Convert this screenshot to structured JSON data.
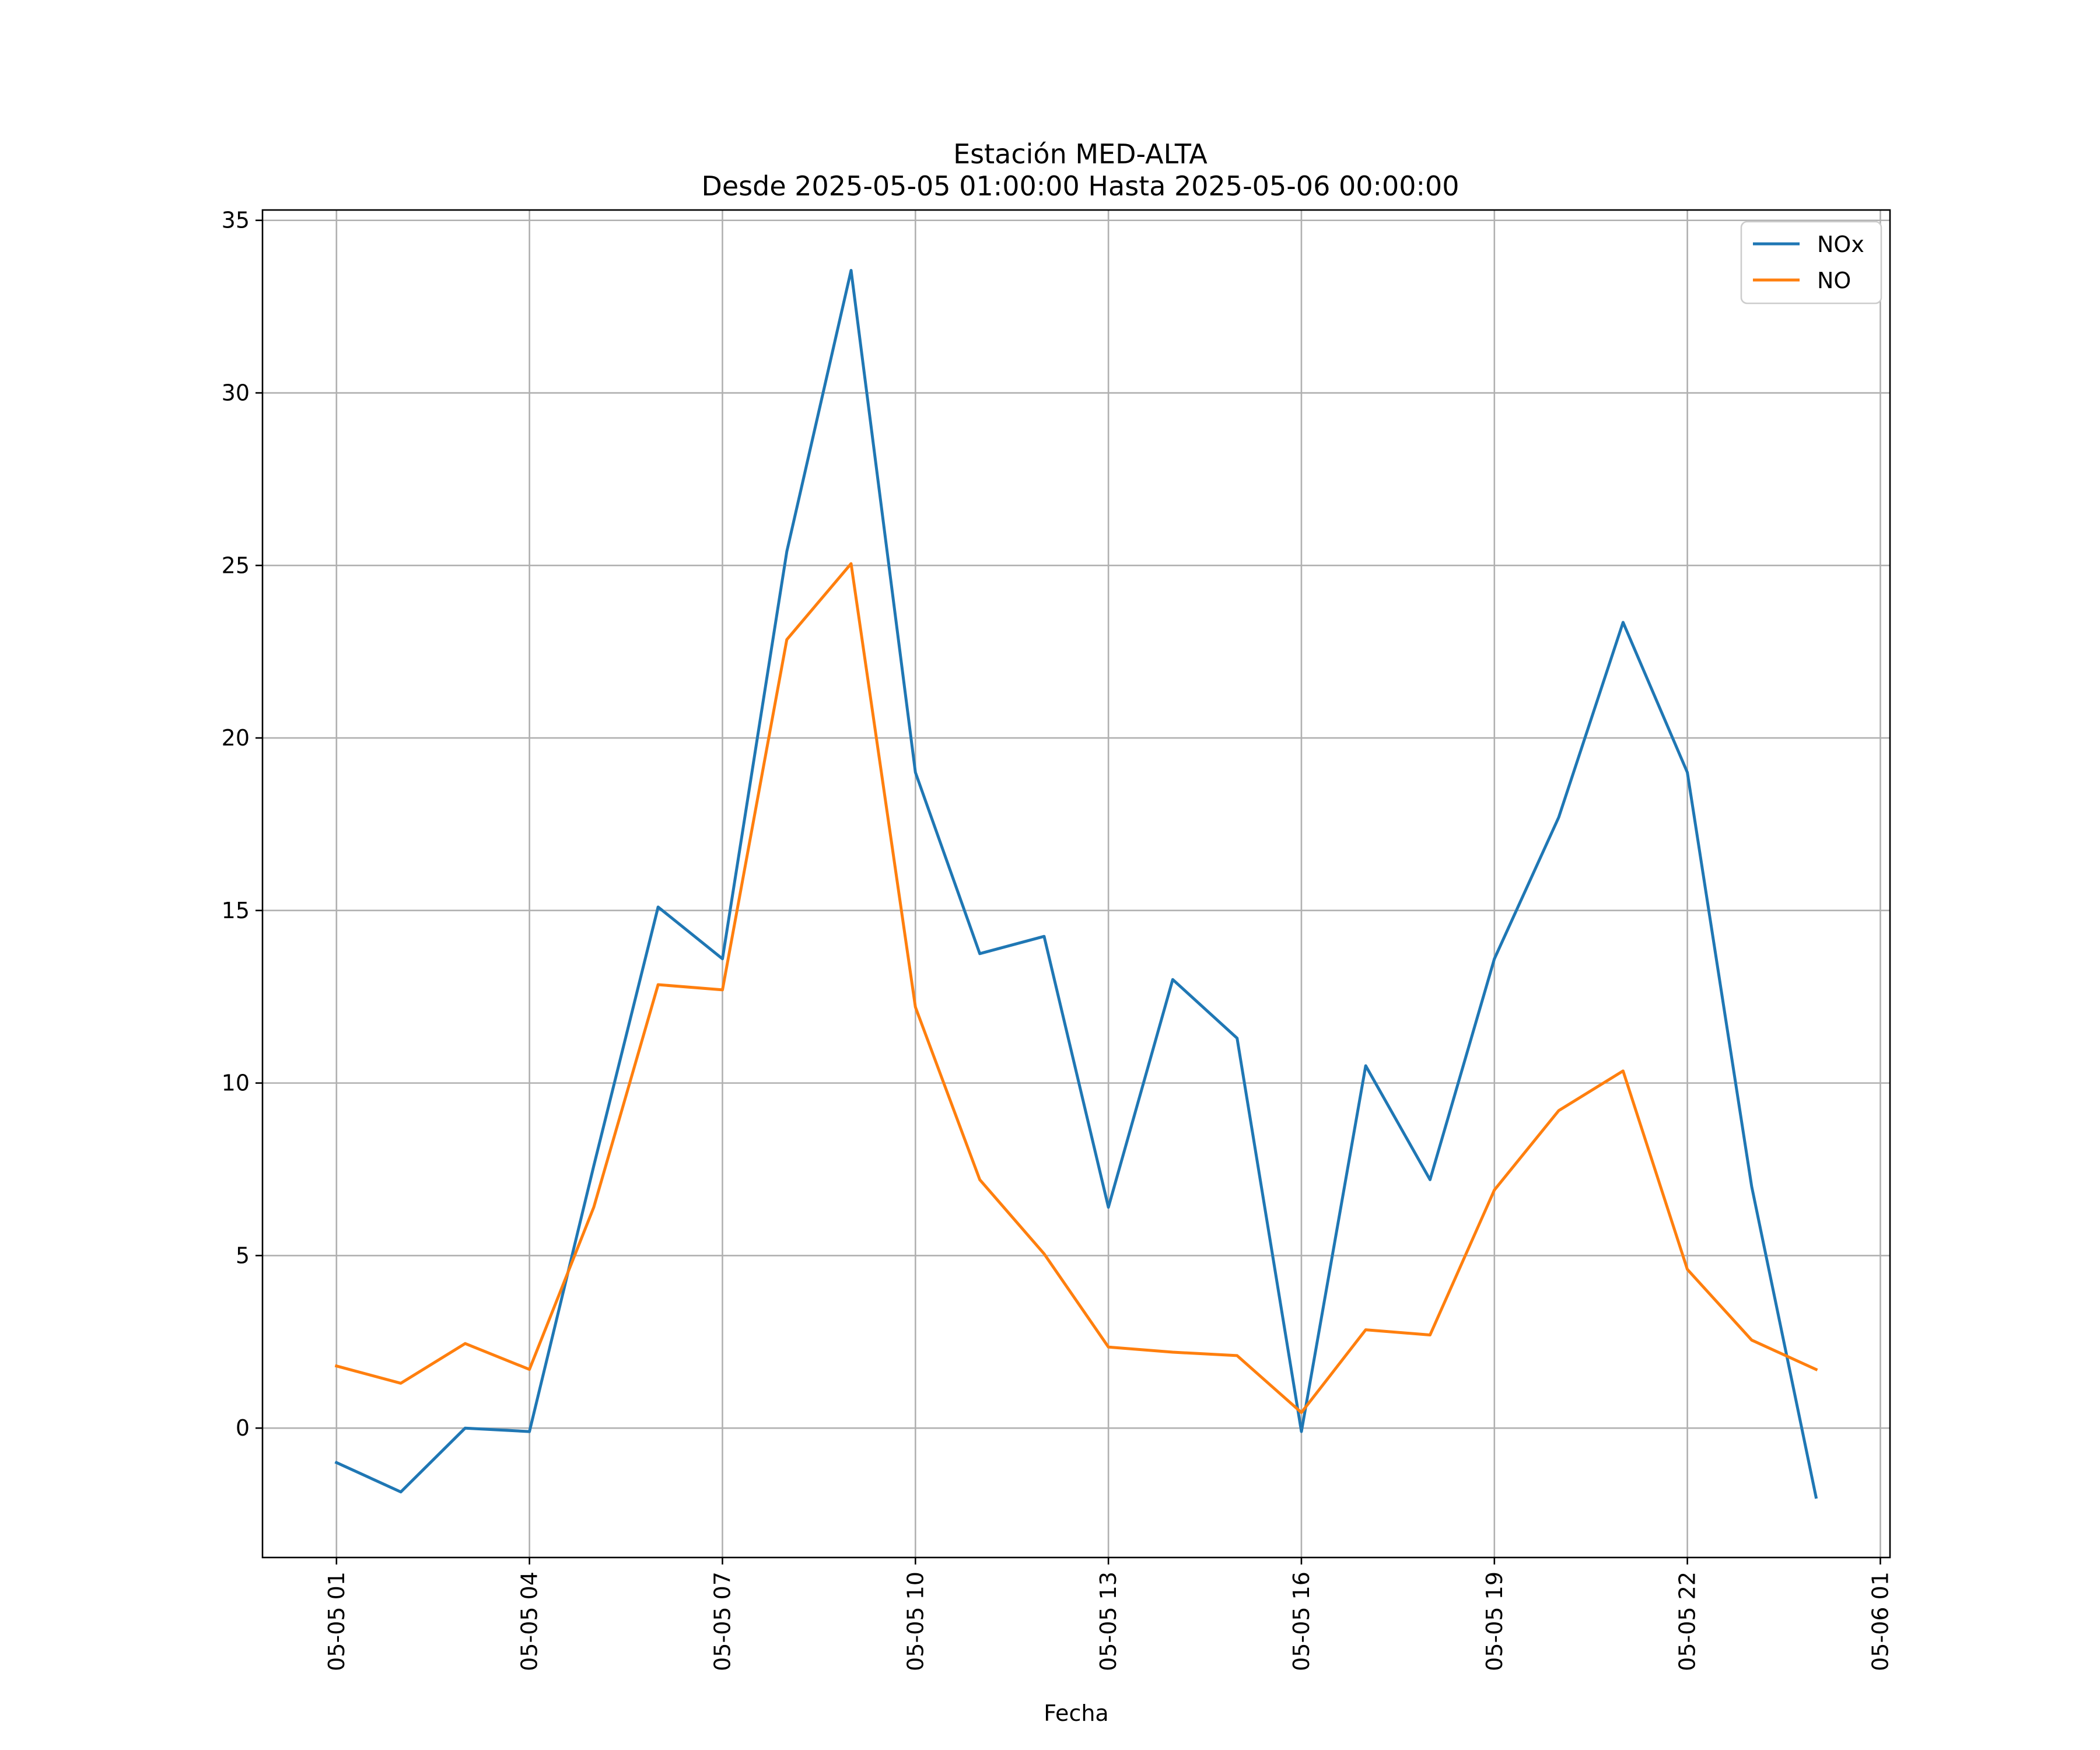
{
  "chart_data": {
    "type": "line",
    "title": "Estación MED-ALTA",
    "subtitle": "Desde 2025-05-05 01:00:00 Hasta 2025-05-06 00:00:00",
    "xlabel": "Fecha",
    "ylabel": "",
    "x": [
      "2025-05-05 01:00",
      "2025-05-05 02:00",
      "2025-05-05 03:00",
      "2025-05-05 04:00",
      "2025-05-05 05:00",
      "2025-05-05 06:00",
      "2025-05-05 07:00",
      "2025-05-05 08:00",
      "2025-05-05 09:00",
      "2025-05-05 10:00",
      "2025-05-05 11:00",
      "2025-05-05 12:00",
      "2025-05-05 13:00",
      "2025-05-05 14:00",
      "2025-05-05 15:00",
      "2025-05-05 16:00",
      "2025-05-05 17:00",
      "2025-05-05 18:00",
      "2025-05-05 19:00",
      "2025-05-05 20:00",
      "2025-05-05 21:00",
      "2025-05-05 22:00",
      "2025-05-05 23:00",
      "2025-05-06 00:00"
    ],
    "series": [
      {
        "name": "NOx",
        "color": "#1f77b4",
        "values": [
          -1.0,
          -1.85,
          0.0,
          -0.1,
          7.6,
          15.1,
          13.6,
          25.4,
          33.55,
          19.0,
          13.75,
          14.25,
          6.4,
          13.0,
          11.3,
          -0.1,
          10.5,
          7.2,
          13.6,
          17.7,
          23.35,
          19.0,
          7.0,
          -2.0
        ]
      },
      {
        "name": "NO",
        "color": "#ff7f0e",
        "values": [
          1.8,
          1.3,
          2.45,
          1.7,
          6.4,
          12.85,
          12.7,
          22.85,
          25.05,
          12.2,
          7.2,
          5.05,
          2.35,
          2.2,
          2.1,
          0.45,
          2.85,
          2.7,
          6.9,
          9.2,
          10.35,
          4.6,
          2.55,
          1.7
        ]
      }
    ],
    "ylim": [
      -3.75,
      35.3
    ],
    "yticks": [
      "0",
      "5",
      "10",
      "15",
      "20",
      "25",
      "30",
      "35"
    ],
    "xticks": [
      "05-05 01",
      "05-05 04",
      "05-05 07",
      "05-05 10",
      "05-05 13",
      "05-05 16",
      "05-05 19",
      "05-05 22",
      "05-06 01"
    ],
    "grid": true,
    "legend_position": "upper right"
  }
}
